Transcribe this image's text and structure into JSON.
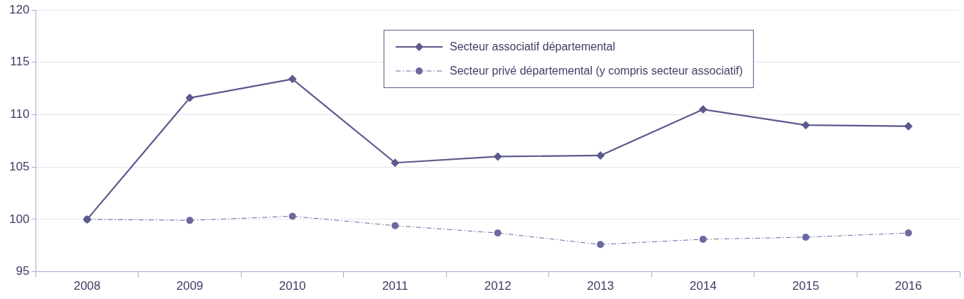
{
  "chart_data": {
    "type": "line",
    "categories": [
      "2008",
      "2009",
      "2010",
      "2011",
      "2012",
      "2013",
      "2014",
      "2015",
      "2016"
    ],
    "series": [
      {
        "name": "Secteur associatif départemental",
        "color": "#5b5a8e",
        "marker": "diamond",
        "line_style": "solid",
        "values": [
          100,
          111.6,
          113.4,
          105.4,
          106.0,
          106.1,
          110.5,
          109.0,
          108.9
        ]
      },
      {
        "name": "Secteur privé départemental (y compris secteur associatif)",
        "color": "#6a69a0",
        "marker": "circle",
        "line_style": "dashdot",
        "values": [
          100,
          99.9,
          100.3,
          99.4,
          98.7,
          97.6,
          98.1,
          98.3,
          98.7
        ]
      }
    ],
    "ylim": [
      95,
      120
    ],
    "yticks": [
      95,
      100,
      105,
      110,
      115,
      120
    ],
    "grid": "y",
    "legend": "top"
  }
}
